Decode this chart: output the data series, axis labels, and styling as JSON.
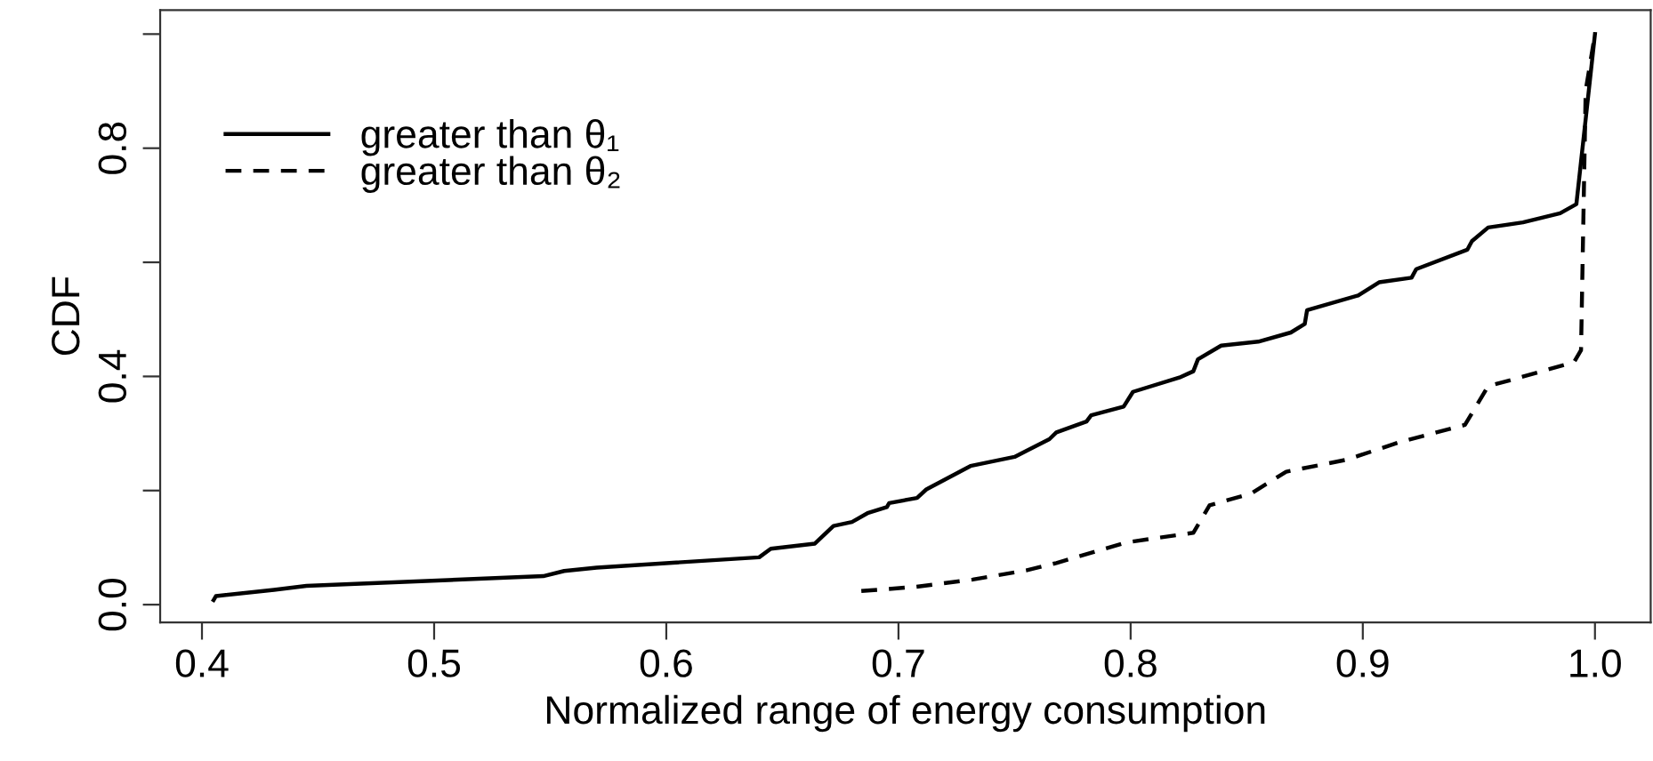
{
  "chart_data": {
    "type": "line",
    "xlabel": "Normalized range of energy consumption",
    "ylabel": "CDF",
    "xlim": [
      0.382,
      1.024
    ],
    "ylim": [
      -0.031,
      1.042
    ],
    "xticks": [
      0.4,
      0.5,
      0.6,
      0.7,
      0.8,
      0.9,
      {
        "value": 1.0,
        "label": "1.0"
      }
    ],
    "yticks": [
      {
        "value": 0.0,
        "label": "0.0"
      },
      {
        "value": 0.2,
        "label": null
      },
      0.4,
      {
        "value": 0.6,
        "label": null
      },
      0.8,
      {
        "value": 1.0,
        "label": null
      }
    ],
    "legend": "top left",
    "grid": false,
    "marker": "none",
    "series": [
      {
        "name": "greater than θ₁",
        "color": "#000000",
        "line_style": "solid",
        "x": [
          0.405,
          0.406,
          0.431,
          0.445,
          0.547,
          0.556,
          0.57,
          0.64,
          0.645,
          0.664,
          0.672,
          0.68,
          0.687,
          0.695,
          0.696,
          0.708,
          0.712,
          0.731,
          0.75,
          0.765,
          0.768,
          0.781,
          0.783,
          0.797,
          0.801,
          0.821,
          0.827,
          0.829,
          0.839,
          0.855,
          0.869,
          0.875,
          0.876,
          0.898,
          0.907,
          0.921,
          0.923,
          0.945,
          0.947,
          0.954,
          0.969,
          0.985,
          0.992,
          1.0
        ],
        "values": [
          0.008,
          0.015,
          0.026,
          0.033,
          0.05,
          0.059,
          0.065,
          0.083,
          0.098,
          0.107,
          0.138,
          0.145,
          0.161,
          0.171,
          0.178,
          0.187,
          0.202,
          0.243,
          0.259,
          0.29,
          0.302,
          0.321,
          0.332,
          0.347,
          0.373,
          0.398,
          0.409,
          0.43,
          0.454,
          0.461,
          0.477,
          0.492,
          0.516,
          0.542,
          0.565,
          0.573,
          0.588,
          0.622,
          0.637,
          0.661,
          0.67,
          0.686,
          0.702,
          1.0
        ]
      },
      {
        "name": "greater than θ₂",
        "color": "#000000",
        "line_style": "dashed",
        "x": [
          0.684,
          0.707,
          0.732,
          0.755,
          0.768,
          0.798,
          0.827,
          0.834,
          0.852,
          0.867,
          0.893,
          0.916,
          0.944,
          0.954,
          0.964,
          0.991,
          0.994,
          0.996,
          1.0
        ],
        "values": [
          0.024,
          0.031,
          0.044,
          0.06,
          0.073,
          0.109,
          0.126,
          0.174,
          0.195,
          0.233,
          0.254,
          0.285,
          0.315,
          0.383,
          0.394,
          0.425,
          0.446,
          0.901,
          1.0
        ]
      }
    ]
  }
}
